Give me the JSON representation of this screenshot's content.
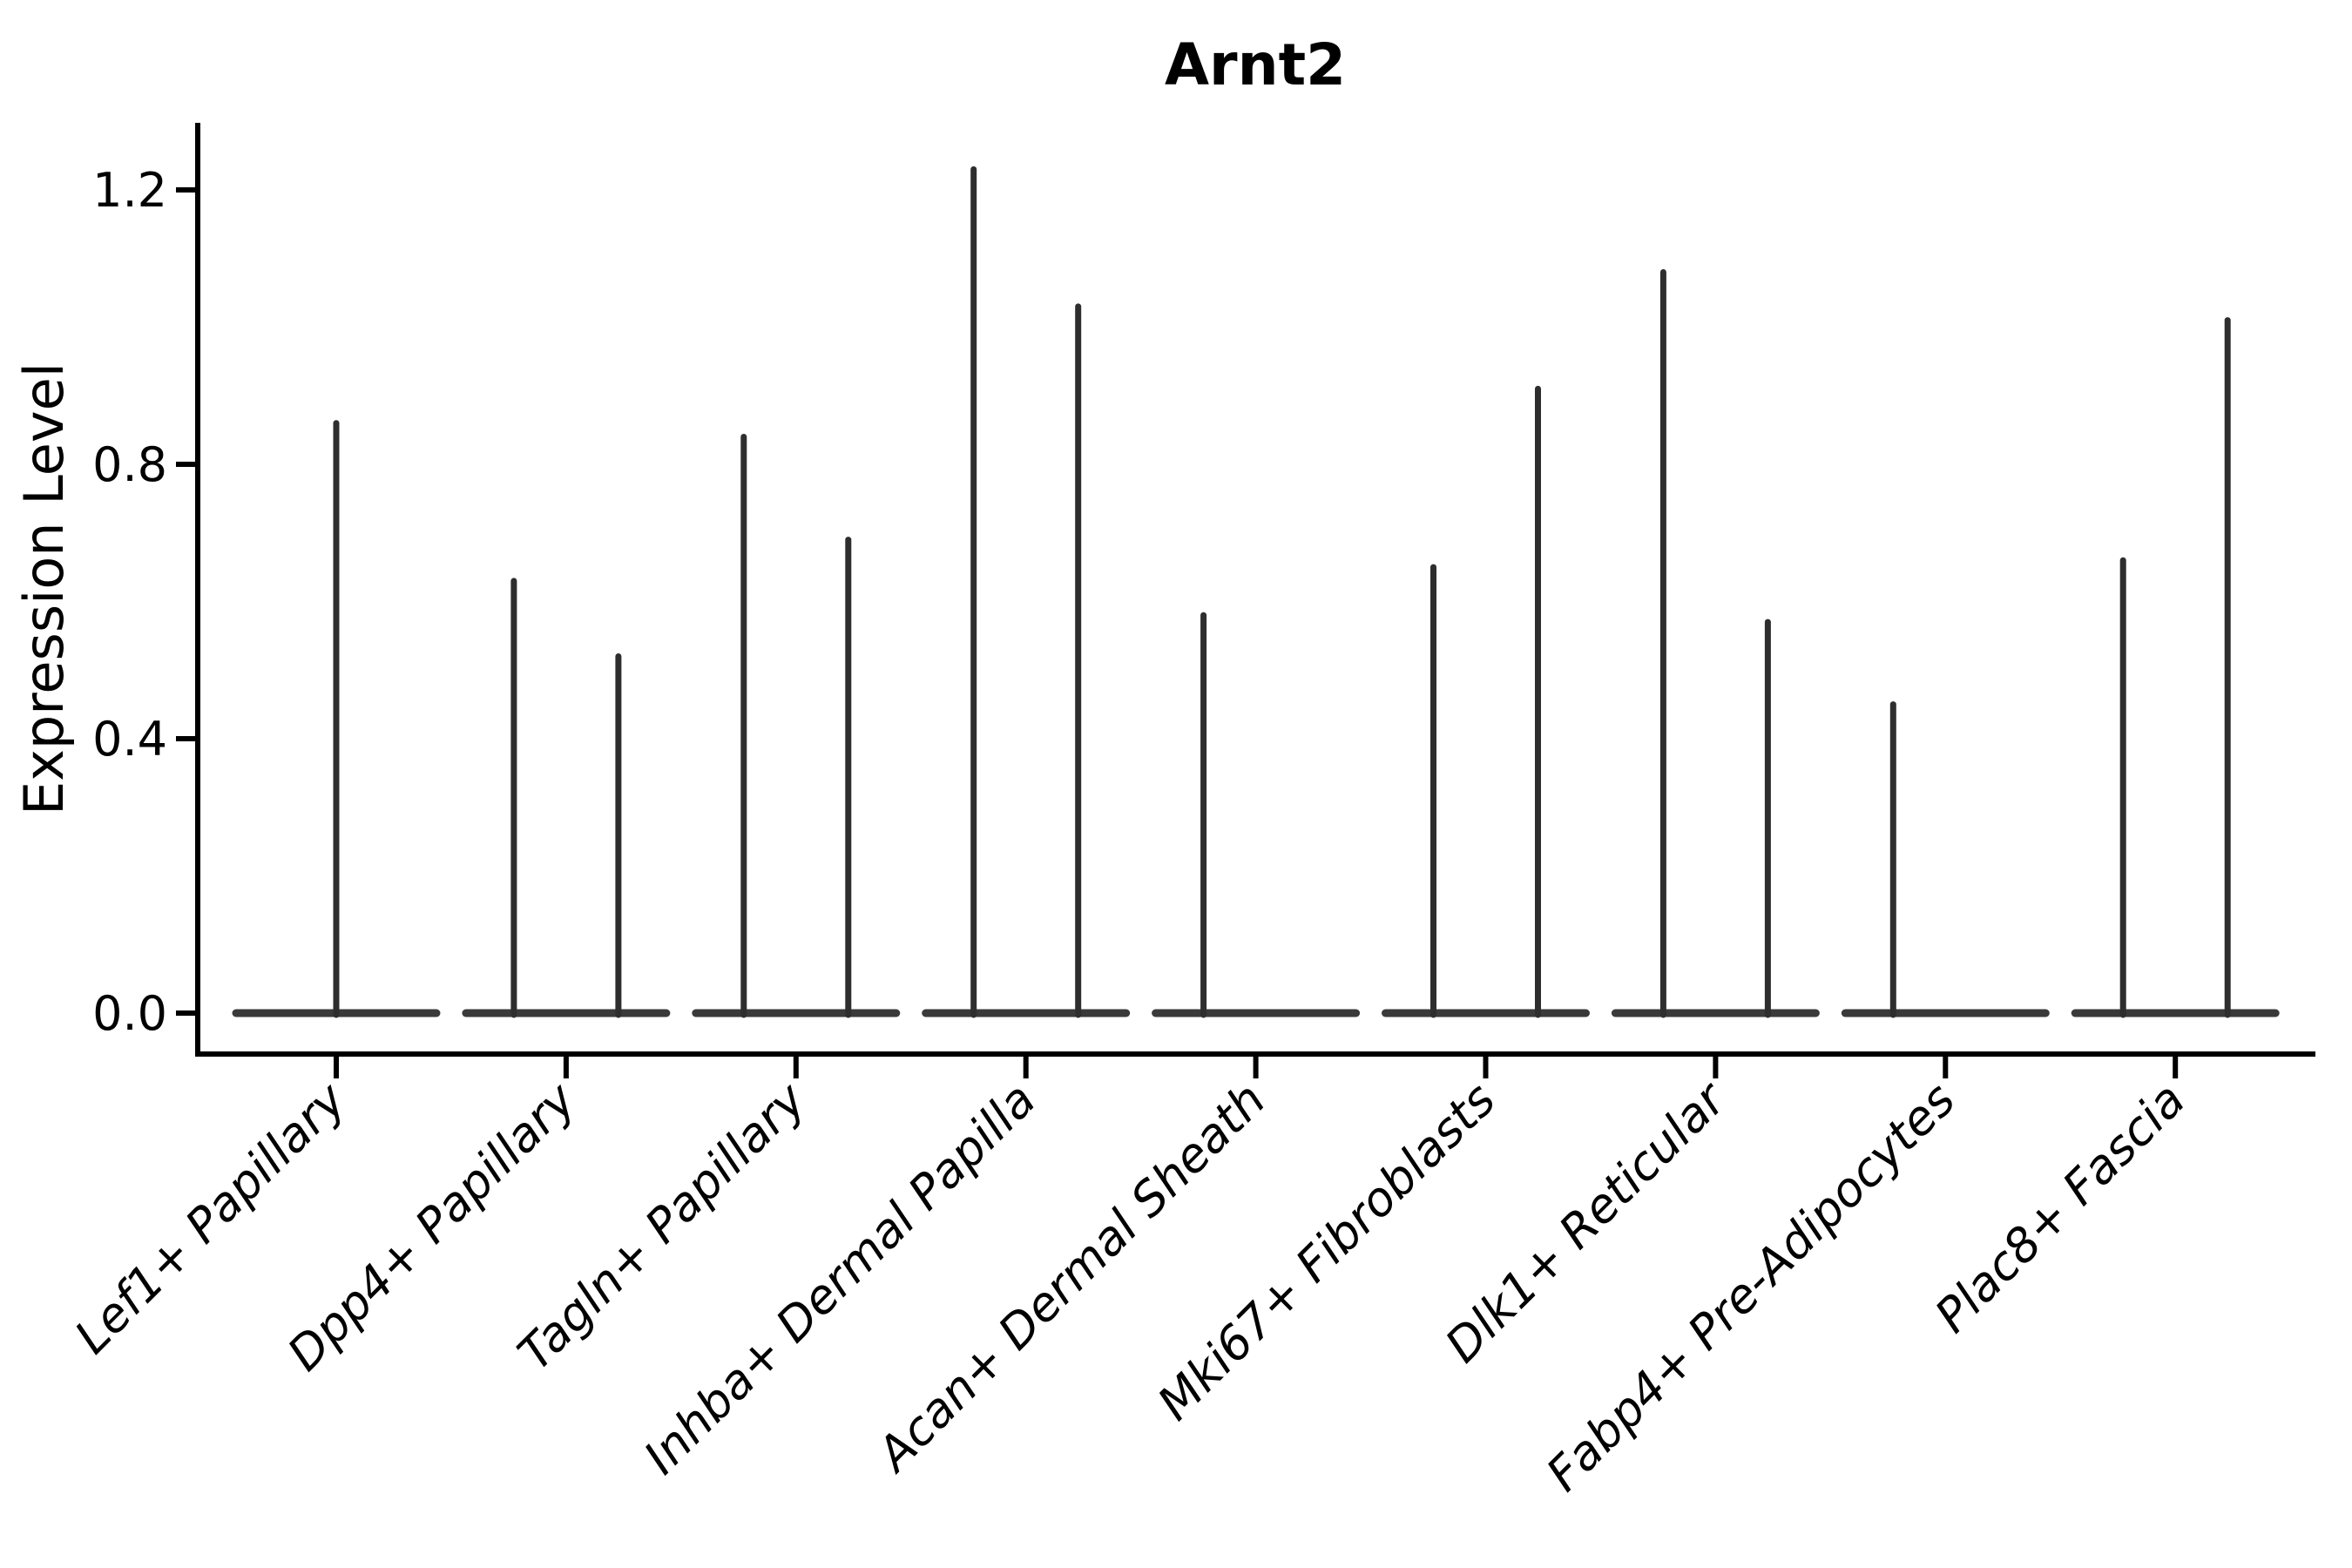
{
  "title": "Arnt2",
  "axes": {
    "ylabel": "Expression Level",
    "ytick_labels": [
      "0.0",
      "0.4",
      "0.8",
      "1.2"
    ]
  },
  "chart_data": {
    "type": "violin",
    "title": "Arnt2",
    "xlabel": "",
    "ylabel": "Expression Level",
    "legend": "none",
    "grid": false,
    "background": "#ffffff",
    "violin_color": "#2e2e2e",
    "baseline_color": "#3a3a3a",
    "yticks": [
      0.0,
      0.4,
      0.8,
      1.2
    ],
    "ylim": [
      0,
      1.3
    ],
    "note": "Each cell-type group shows violin(s) collapsed to a flat baseline at 0 with a thin density spike up to the max expression value",
    "categories": [
      "Lef1+ Papillary",
      "Dpp4+ Papillary",
      "Tagln+ Papillary",
      "Inhba+ Dermal Papilla",
      "Acan+ Dermal Sheath",
      "Mki67+ Fibroblasts",
      "Dlk1+ Reticular",
      "Fabp4+ Pre-Adipocytes",
      "Plac8+ Fascia"
    ],
    "groups": [
      {
        "category": "Lef1+ Papillary",
        "violins": [
          {
            "position": "center",
            "max": 0.86
          }
        ]
      },
      {
        "category": "Dpp4+ Papillary",
        "violins": [
          {
            "position": "left",
            "max": 0.63
          },
          {
            "position": "right",
            "max": 0.52
          }
        ]
      },
      {
        "category": "Tagln+ Papillary",
        "violins": [
          {
            "position": "left",
            "max": 0.84
          },
          {
            "position": "right",
            "max": 0.69
          }
        ]
      },
      {
        "category": "Inhba+ Dermal Papilla",
        "violins": [
          {
            "position": "left",
            "max": 1.23
          },
          {
            "position": "right",
            "max": 1.03
          }
        ]
      },
      {
        "category": "Acan+ Dermal Sheath",
        "violins": [
          {
            "position": "left",
            "max": 0.58
          }
        ]
      },
      {
        "category": "Mki67+ Fibroblasts",
        "violins": [
          {
            "position": "left",
            "max": 0.65
          },
          {
            "position": "right",
            "max": 0.91
          }
        ]
      },
      {
        "category": "Dlk1+ Reticular",
        "violins": [
          {
            "position": "left",
            "max": 1.08
          },
          {
            "position": "right",
            "max": 0.57
          }
        ]
      },
      {
        "category": "Fabp4+ Pre-Adipocytes",
        "violins": [
          {
            "position": "left",
            "max": 0.45
          }
        ]
      },
      {
        "category": "Plac8+ Fascia",
        "violins": [
          {
            "position": "left",
            "max": 0.66
          },
          {
            "position": "right",
            "max": 1.01
          }
        ]
      }
    ]
  }
}
